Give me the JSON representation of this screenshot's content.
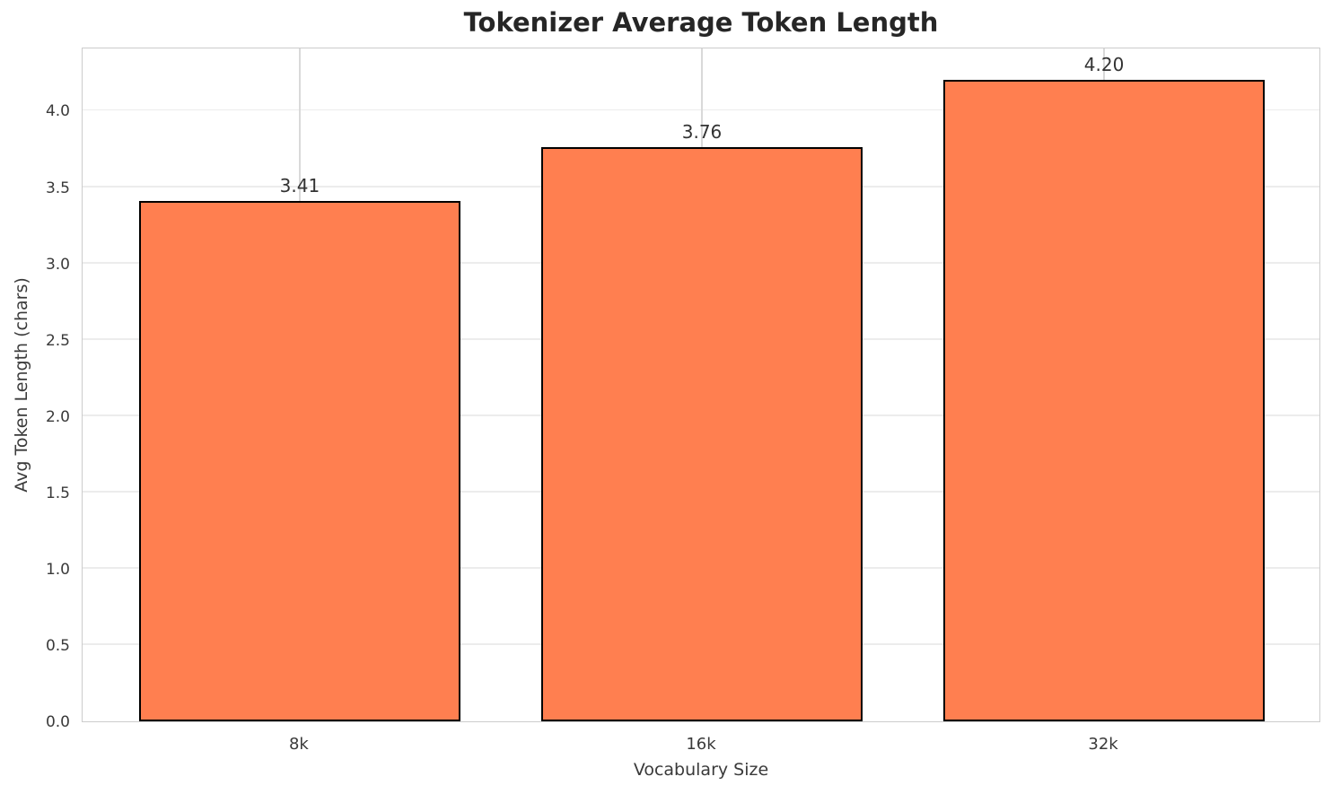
{
  "chart_data": {
    "type": "bar",
    "title": "Tokenizer Average Token Length",
    "xlabel": "Vocabulary Size",
    "ylabel": "Avg Token Length (chars)",
    "categories": [
      "8k",
      "16k",
      "32k"
    ],
    "values": [
      3.41,
      3.76,
      4.2
    ],
    "value_labels": [
      "3.41",
      "3.76",
      "4.20"
    ],
    "ylim": [
      0,
      4.42
    ],
    "xlim": [
      -0.54,
      2.54
    ],
    "bar_width_fraction": 0.8,
    "ytick_values": [
      0,
      0.5,
      1,
      1.5,
      2,
      2.5,
      3,
      3.5,
      4
    ],
    "ytick_labels": [
      "0.0",
      "0.5",
      "1.0",
      "1.5",
      "2.0",
      "2.5",
      "3.0",
      "3.5",
      "4.0"
    ],
    "grid": true,
    "legend_position": "none",
    "colors": {
      "bar_fill": "#ff7f50",
      "bar_edge": "#000000",
      "grid_horizontal": "#ececec",
      "grid_vertical": "#d9d9d9",
      "spine": "#cccccc",
      "title_text": "#262626",
      "axis_text": "#3a3a3a",
      "value_label_text": "#333333",
      "background": "#ffffff"
    }
  }
}
